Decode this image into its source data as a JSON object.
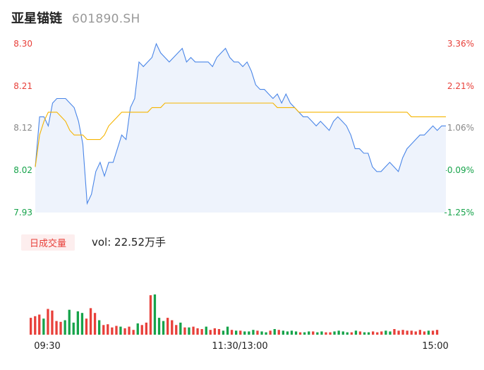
{
  "header": {
    "name": "亚星锚链",
    "code": "601890.SH"
  },
  "chart_data": [
    {
      "type": "line",
      "title": "",
      "y_ticks_left": [
        "8.30",
        "8.21",
        "8.12",
        "8.02",
        "7.93"
      ],
      "y_ticks_right": [
        "3.36%",
        "2.21%",
        "1.06%",
        "-0.09%",
        "-1.25%"
      ],
      "y_tick_colors": [
        "#e8403a",
        "#e8403a",
        "#888888",
        "#16a34a",
        "#16a34a"
      ],
      "ylim": [
        7.93,
        8.3
      ],
      "x_ticks": [
        "09:30",
        "11:30/13:00",
        "15:00"
      ],
      "series": [
        {
          "type": "price",
          "color": "#4a86e8",
          "values": [
            8.03,
            8.14,
            8.14,
            8.12,
            8.17,
            8.18,
            8.18,
            8.18,
            8.17,
            8.16,
            8.13,
            8.08,
            7.95,
            7.97,
            8.02,
            8.04,
            8.01,
            8.04,
            8.04,
            8.07,
            8.1,
            8.09,
            8.16,
            8.18,
            8.26,
            8.25,
            8.26,
            8.27,
            8.3,
            8.28,
            8.27,
            8.26,
            8.27,
            8.28,
            8.29,
            8.26,
            8.27,
            8.26,
            8.26,
            8.26,
            8.26,
            8.25,
            8.27,
            8.28,
            8.29,
            8.27,
            8.26,
            8.26,
            8.25,
            8.26,
            8.24,
            8.21,
            8.2,
            8.2,
            8.19,
            8.18,
            8.19,
            8.17,
            8.19,
            8.17,
            8.16,
            8.15,
            8.14,
            8.14,
            8.13,
            8.12,
            8.13,
            8.12,
            8.11,
            8.13,
            8.14,
            8.13,
            8.12,
            8.1,
            8.07,
            8.07,
            8.06,
            8.06,
            8.03,
            8.02,
            8.02,
            8.03,
            8.04,
            8.03,
            8.02,
            8.05,
            8.07,
            8.08,
            8.09,
            8.1,
            8.1,
            8.11,
            8.12,
            8.11,
            8.12,
            8.12
          ]
        },
        {
          "type": "avg",
          "color": "#f5b400",
          "values": [
            8.03,
            8.1,
            8.13,
            8.15,
            8.15,
            8.15,
            8.14,
            8.13,
            8.11,
            8.1,
            8.1,
            8.1,
            8.09,
            8.09,
            8.09,
            8.09,
            8.1,
            8.12,
            8.13,
            8.14,
            8.15,
            8.15,
            8.15,
            8.15,
            8.15,
            8.15,
            8.15,
            8.16,
            8.16,
            8.16,
            8.17,
            8.17,
            8.17,
            8.17,
            8.17,
            8.17,
            8.17,
            8.17,
            8.17,
            8.17,
            8.17,
            8.17,
            8.17,
            8.17,
            8.17,
            8.17,
            8.17,
            8.17,
            8.17,
            8.17,
            8.17,
            8.17,
            8.17,
            8.17,
            8.17,
            8.17,
            8.16,
            8.16,
            8.16,
            8.16,
            8.16,
            8.15,
            8.15,
            8.15,
            8.15,
            8.15,
            8.15,
            8.15,
            8.15,
            8.15,
            8.15,
            8.15,
            8.15,
            8.15,
            8.15,
            8.15,
            8.15,
            8.15,
            8.15,
            8.15,
            8.15,
            8.15,
            8.15,
            8.15,
            8.15,
            8.15,
            8.15,
            8.14,
            8.14,
            8.14,
            8.14,
            8.14,
            8.14,
            8.14,
            8.14,
            8.14
          ]
        }
      ]
    },
    {
      "type": "bar",
      "badge": "日成交量",
      "vol_label": "vol: 22.52万手",
      "up_color": "#e8403a",
      "down_color": "#16a34a",
      "values": [
        0.21,
        0.23,
        0.25,
        0.2,
        0.32,
        0.3,
        0.17,
        0.16,
        0.18,
        0.31,
        0.15,
        0.29,
        0.27,
        0.2,
        0.33,
        0.27,
        0.18,
        0.12,
        0.13,
        0.09,
        0.11,
        0.1,
        0.08,
        0.1,
        0.06,
        0.14,
        0.12,
        0.15,
        0.49,
        0.5,
        0.21,
        0.17,
        0.21,
        0.18,
        0.12,
        0.15,
        0.09,
        0.09,
        0.1,
        0.08,
        0.07,
        0.1,
        0.06,
        0.08,
        0.07,
        0.05,
        0.1,
        0.06,
        0.05,
        0.05,
        0.04,
        0.04,
        0.06,
        0.05,
        0.04,
        0.03,
        0.05,
        0.07,
        0.06,
        0.05,
        0.04,
        0.05,
        0.04,
        0.03,
        0.03,
        0.04,
        0.04,
        0.03,
        0.04,
        0.03,
        0.03,
        0.04,
        0.05,
        0.04,
        0.03,
        0.03,
        0.05,
        0.04,
        0.03,
        0.03,
        0.04,
        0.03,
        0.04,
        0.05,
        0.04,
        0.07,
        0.05,
        0.06,
        0.05,
        0.05,
        0.04,
        0.06,
        0.04,
        0.05,
        0.05,
        0.06
      ]
    }
  ]
}
